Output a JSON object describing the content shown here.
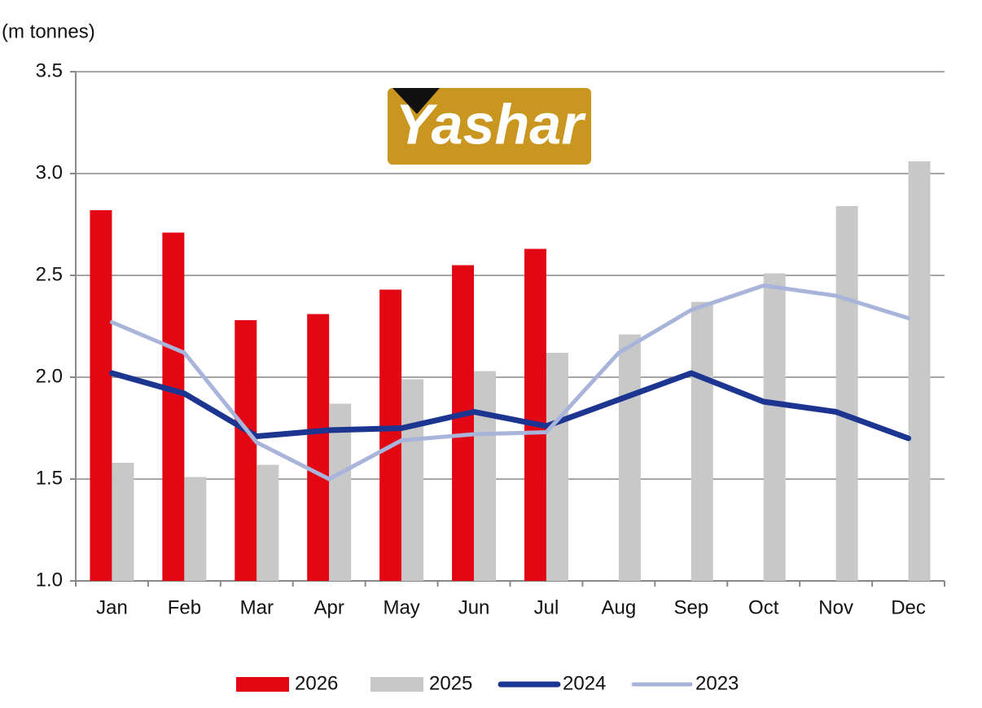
{
  "logo": "Yashar",
  "chart_data": {
    "type": "bar",
    "y_label": "(m tonnes)",
    "categories": [
      "Jan",
      "Feb",
      "Mar",
      "Apr",
      "May",
      "Jun",
      "Jul",
      "Aug",
      "Sep",
      "Oct",
      "Nov",
      "Dec"
    ],
    "series": [
      {
        "name": "2026",
        "type": "bar",
        "color": "#e30613",
        "values": [
          2.82,
          2.71,
          2.28,
          2.31,
          2.43,
          2.55,
          2.63,
          null,
          null,
          null,
          null,
          null
        ]
      },
      {
        "name": "2025",
        "type": "bar",
        "color": "#c8c8c8",
        "values": [
          1.58,
          1.51,
          1.57,
          1.87,
          1.99,
          2.03,
          2.12,
          2.21,
          2.37,
          2.51,
          2.84,
          3.06
        ]
      },
      {
        "name": "2024",
        "type": "line",
        "color": "#1b3591",
        "values": [
          2.02,
          1.92,
          1.71,
          1.74,
          1.75,
          1.83,
          1.76,
          1.89,
          2.02,
          1.88,
          1.83,
          1.7
        ]
      },
      {
        "name": "2023",
        "type": "line",
        "color": "#a9b4da",
        "values": [
          2.27,
          2.12,
          1.68,
          1.5,
          1.69,
          1.72,
          1.73,
          2.12,
          2.33,
          2.45,
          2.4,
          2.29
        ]
      }
    ],
    "ylim": [
      1,
      3.5
    ],
    "yticks": [
      {
        "value": 1,
        "label": "1.0"
      },
      1.5,
      {
        "value": 2,
        "label": "2.0"
      },
      2.5,
      {
        "value": 3,
        "label": "3.0"
      },
      3.5
    ],
    "grid": true,
    "legend": "bottom"
  }
}
